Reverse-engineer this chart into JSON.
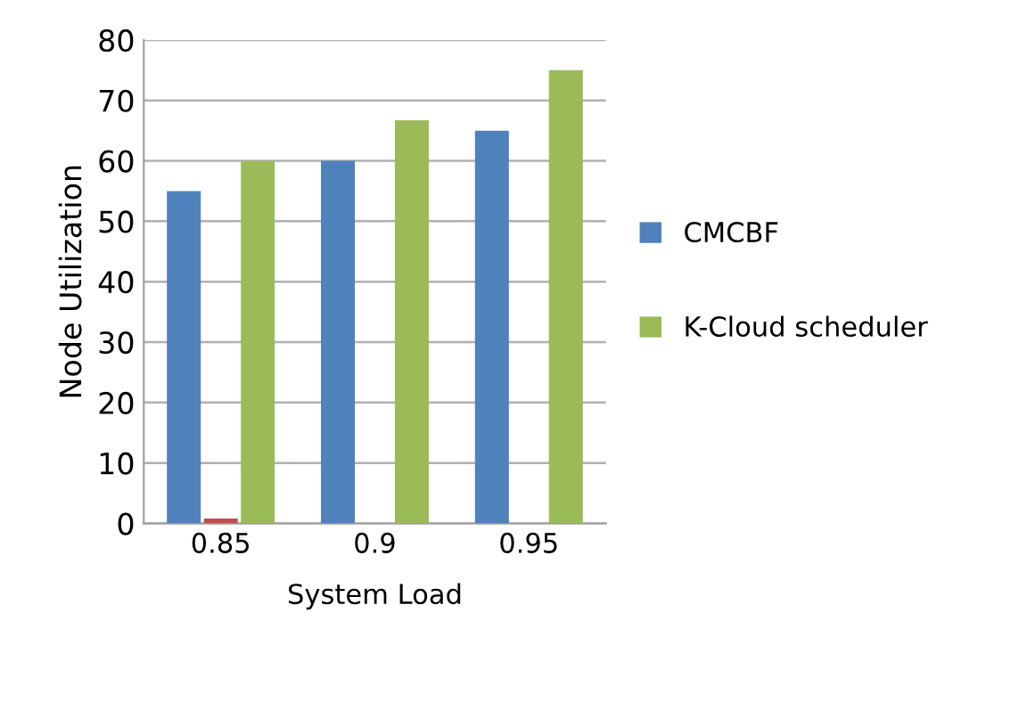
{
  "chart_data": {
    "type": "bar",
    "xlabel": "System Load",
    "ylabel": "Node Utilization",
    "categories": [
      "0.85",
      "0.9",
      "0.95"
    ],
    "series": [
      {
        "name": "CMCBF",
        "color": "#4f81bd",
        "values": [
          55,
          60,
          65
        ]
      },
      {
        "color": "#c0504d",
        "values": [
          0.8,
          null,
          null
        ]
      },
      {
        "name": "K-Cloud scheduler",
        "color": "#9bbb59",
        "values": [
          60,
          66.7,
          75
        ]
      }
    ],
    "ylim": [
      0,
      80
    ],
    "yticks": [
      0,
      10,
      20,
      30,
      40,
      50,
      60,
      70,
      80
    ],
    "grid": "y",
    "legend": "right"
  }
}
